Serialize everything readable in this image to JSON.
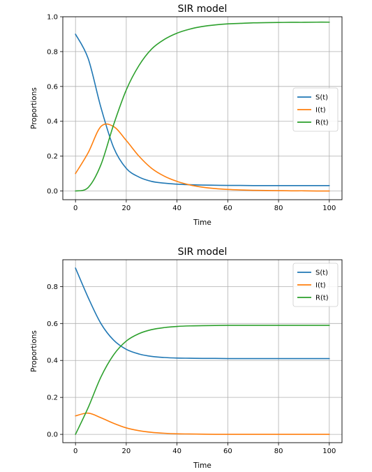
{
  "chart_data": [
    {
      "type": "line",
      "title": "SIR model",
      "xlabel": "Time",
      "ylabel": "Proportions",
      "xlim": [
        -5,
        105
      ],
      "ylim": [
        -0.05,
        1.0
      ],
      "xticks": [
        0,
        20,
        40,
        60,
        80,
        100
      ],
      "yticks": [
        0.0,
        0.2,
        0.4,
        0.6,
        0.8,
        1.0
      ],
      "xtick_labels": [
        "0",
        "20",
        "40",
        "60",
        "80",
        "100"
      ],
      "ytick_labels": [
        "0.0",
        "0.2",
        "0.4",
        "0.6",
        "0.8",
        "1.0"
      ],
      "grid": true,
      "legend_position": "center-right",
      "x": [
        0,
        5,
        10,
        15,
        20,
        25,
        30,
        35,
        40,
        45,
        50,
        55,
        60,
        65,
        70,
        75,
        80,
        85,
        90,
        95,
        100
      ],
      "series": [
        {
          "name": "S(t)",
          "color": "#1f77b4",
          "values": [
            0.9,
            0.76,
            0.48,
            0.25,
            0.13,
            0.08,
            0.055,
            0.045,
            0.039,
            0.036,
            0.034,
            0.033,
            0.032,
            0.032,
            0.031,
            0.031,
            0.031,
            0.031,
            0.031,
            0.031,
            0.031
          ]
        },
        {
          "name": "I(t)",
          "color": "#ff7f0e",
          "values": [
            0.1,
            0.22,
            0.37,
            0.37,
            0.29,
            0.2,
            0.13,
            0.085,
            0.055,
            0.035,
            0.022,
            0.014,
            0.009,
            0.006,
            0.004,
            0.003,
            0.002,
            0.001,
            0.001,
            0.0,
            0.0
          ]
        },
        {
          "name": "R(t)",
          "color": "#2ca02c",
          "values": [
            0.0,
            0.02,
            0.15,
            0.38,
            0.58,
            0.72,
            0.815,
            0.87,
            0.906,
            0.929,
            0.944,
            0.953,
            0.959,
            0.962,
            0.965,
            0.966,
            0.967,
            0.968,
            0.968,
            0.969,
            0.969
          ]
        }
      ]
    },
    {
      "type": "line",
      "title": "SIR model",
      "xlabel": "Time",
      "ylabel": "Proportions",
      "xlim": [
        -5,
        105
      ],
      "ylim": [
        -0.045,
        0.945
      ],
      "xticks": [
        0,
        20,
        40,
        60,
        80,
        100
      ],
      "yticks": [
        0.0,
        0.2,
        0.4,
        0.6,
        0.8
      ],
      "xtick_labels": [
        "0",
        "20",
        "40",
        "60",
        "80",
        "100"
      ],
      "ytick_labels": [
        "0.0",
        "0.2",
        "0.4",
        "0.6",
        "0.8"
      ],
      "grid": true,
      "legend_position": "top-right",
      "x": [
        0,
        5,
        10,
        15,
        20,
        25,
        30,
        35,
        40,
        45,
        50,
        55,
        60,
        65,
        70,
        75,
        80,
        85,
        90,
        95,
        100
      ],
      "series": [
        {
          "name": "S(t)",
          "color": "#1f77b4",
          "values": [
            0.9,
            0.74,
            0.6,
            0.51,
            0.46,
            0.435,
            0.422,
            0.416,
            0.413,
            0.412,
            0.411,
            0.411,
            0.41,
            0.41,
            0.41,
            0.41,
            0.41,
            0.41,
            0.41,
            0.41,
            0.41
          ]
        },
        {
          "name": "I(t)",
          "color": "#ff7f0e",
          "values": [
            0.1,
            0.115,
            0.09,
            0.06,
            0.035,
            0.02,
            0.011,
            0.006,
            0.003,
            0.002,
            0.001,
            0.0,
            0.0,
            0.0,
            0.0,
            0.0,
            0.0,
            0.0,
            0.0,
            0.0,
            0.0
          ]
        },
        {
          "name": "R(t)",
          "color": "#2ca02c",
          "values": [
            0.0,
            0.145,
            0.31,
            0.43,
            0.505,
            0.545,
            0.567,
            0.578,
            0.584,
            0.587,
            0.588,
            0.589,
            0.59,
            0.59,
            0.59,
            0.59,
            0.59,
            0.59,
            0.59,
            0.59,
            0.59
          ]
        }
      ]
    }
  ]
}
